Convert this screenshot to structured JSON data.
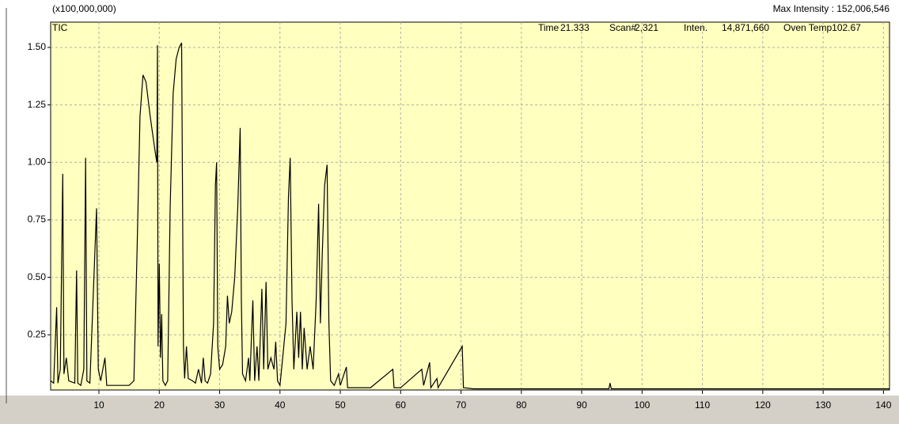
{
  "chart_data": {
    "type": "line",
    "y_axis_label": "(x100,000,000)",
    "max_intensity": "Max Intensity : 152,006,546",
    "status": [
      "Time",
      "21.333",
      "Scan#",
      "2,321",
      "Inten.",
      "14,871,660",
      "Oven Temp102.67"
    ],
    "x": [
      2.0,
      2.5,
      3.0,
      3.2,
      3.6,
      4.0,
      4.2,
      4.6,
      5.0,
      6.0,
      6.3,
      6.5,
      7.0,
      7.5,
      7.8,
      8.0,
      8.5,
      9.6,
      9.9,
      10.3,
      11.0,
      11.3,
      13.0,
      15.0,
      15.8,
      16.3,
      16.8,
      17.3,
      17.8,
      18.5,
      19.3,
      19.6,
      19.7,
      19.8,
      20.0,
      20.2,
      20.4,
      20.6,
      21.0,
      21.4,
      21.8,
      22.3,
      22.8,
      23.3,
      23.7,
      24.0,
      24.2,
      24.5,
      24.8,
      25.5,
      26.0,
      26.5,
      27.0,
      27.3,
      27.6,
      28.0,
      28.5,
      29.0,
      29.3,
      29.5,
      29.7,
      30.0,
      30.5,
      31.0,
      31.3,
      31.6,
      32.0,
      32.5,
      33.0,
      33.4,
      33.6,
      33.8,
      34.3,
      34.8,
      35.0,
      35.5,
      35.8,
      36.2,
      36.5,
      37.0,
      37.3,
      37.7,
      38.0,
      38.5,
      39.0,
      39.3,
      39.6,
      40.0,
      41.0,
      41.4,
      41.7,
      42.0,
      42.3,
      42.8,
      43.1,
      43.4,
      43.7,
      44.0,
      44.5,
      45.0,
      45.5,
      46.0,
      46.4,
      46.7,
      47.0,
      47.4,
      47.8,
      48.1,
      48.4,
      49.0,
      49.7,
      50.0,
      51.0,
      51.2,
      52.0,
      55.0,
      58.7,
      58.9,
      60.0,
      63.5,
      63.8,
      64.8,
      65.0,
      66.0,
      66.2,
      70.2,
      70.4,
      72.0,
      94.5,
      94.7,
      94.9,
      141.0
    ],
    "series": [
      {
        "name": "TIC",
        "color": "#000000",
        "values": [
          0.05,
          0.04,
          0.37,
          0.04,
          0.1,
          0.95,
          0.08,
          0.15,
          0.05,
          0.04,
          0.53,
          0.04,
          0.03,
          0.1,
          1.02,
          0.05,
          0.04,
          0.8,
          0.1,
          0.05,
          0.15,
          0.03,
          0.03,
          0.03,
          0.05,
          0.6,
          1.2,
          1.38,
          1.35,
          1.2,
          1.05,
          1.0,
          1.51,
          0.2,
          0.56,
          0.15,
          0.34,
          0.05,
          0.03,
          0.05,
          0.8,
          1.3,
          1.45,
          1.5,
          1.52,
          0.2,
          0.06,
          0.2,
          0.06,
          0.05,
          0.04,
          0.1,
          0.04,
          0.15,
          0.05,
          0.04,
          0.08,
          0.3,
          0.9,
          1.0,
          0.2,
          0.1,
          0.12,
          0.2,
          0.42,
          0.3,
          0.35,
          0.5,
          0.8,
          1.15,
          0.4,
          0.08,
          0.05,
          0.15,
          0.05,
          0.4,
          0.05,
          0.2,
          0.05,
          0.45,
          0.1,
          0.48,
          0.1,
          0.15,
          0.1,
          0.22,
          0.05,
          0.03,
          0.3,
          0.85,
          1.02,
          0.4,
          0.1,
          0.35,
          0.15,
          0.35,
          0.1,
          0.28,
          0.1,
          0.2,
          0.1,
          0.4,
          0.82,
          0.3,
          0.6,
          0.9,
          0.99,
          0.3,
          0.05,
          0.03,
          0.08,
          0.03,
          0.11,
          0.02,
          0.02,
          0.02,
          0.1,
          0.02,
          0.02,
          0.1,
          0.03,
          0.13,
          0.02,
          0.06,
          0.02,
          0.2,
          0.02,
          0.015,
          0.015,
          0.04,
          0.015,
          0.015
        ]
      }
    ],
    "xlim": [
      2,
      141
    ],
    "ylim": [
      0.01,
      1.61
    ],
    "xticks": [
      10,
      20,
      30,
      40,
      50,
      60,
      70,
      80,
      90,
      100,
      110,
      120,
      130,
      140
    ],
    "yticks": [
      0.25,
      {
        "value": 0.5,
        "label": "0.50"
      },
      0.75,
      {
        "value": 1.0,
        "label": "1.00"
      },
      1.25,
      {
        "value": 1.5,
        "label": "1.50"
      }
    ],
    "grid": true,
    "background": "#ffffc0"
  }
}
